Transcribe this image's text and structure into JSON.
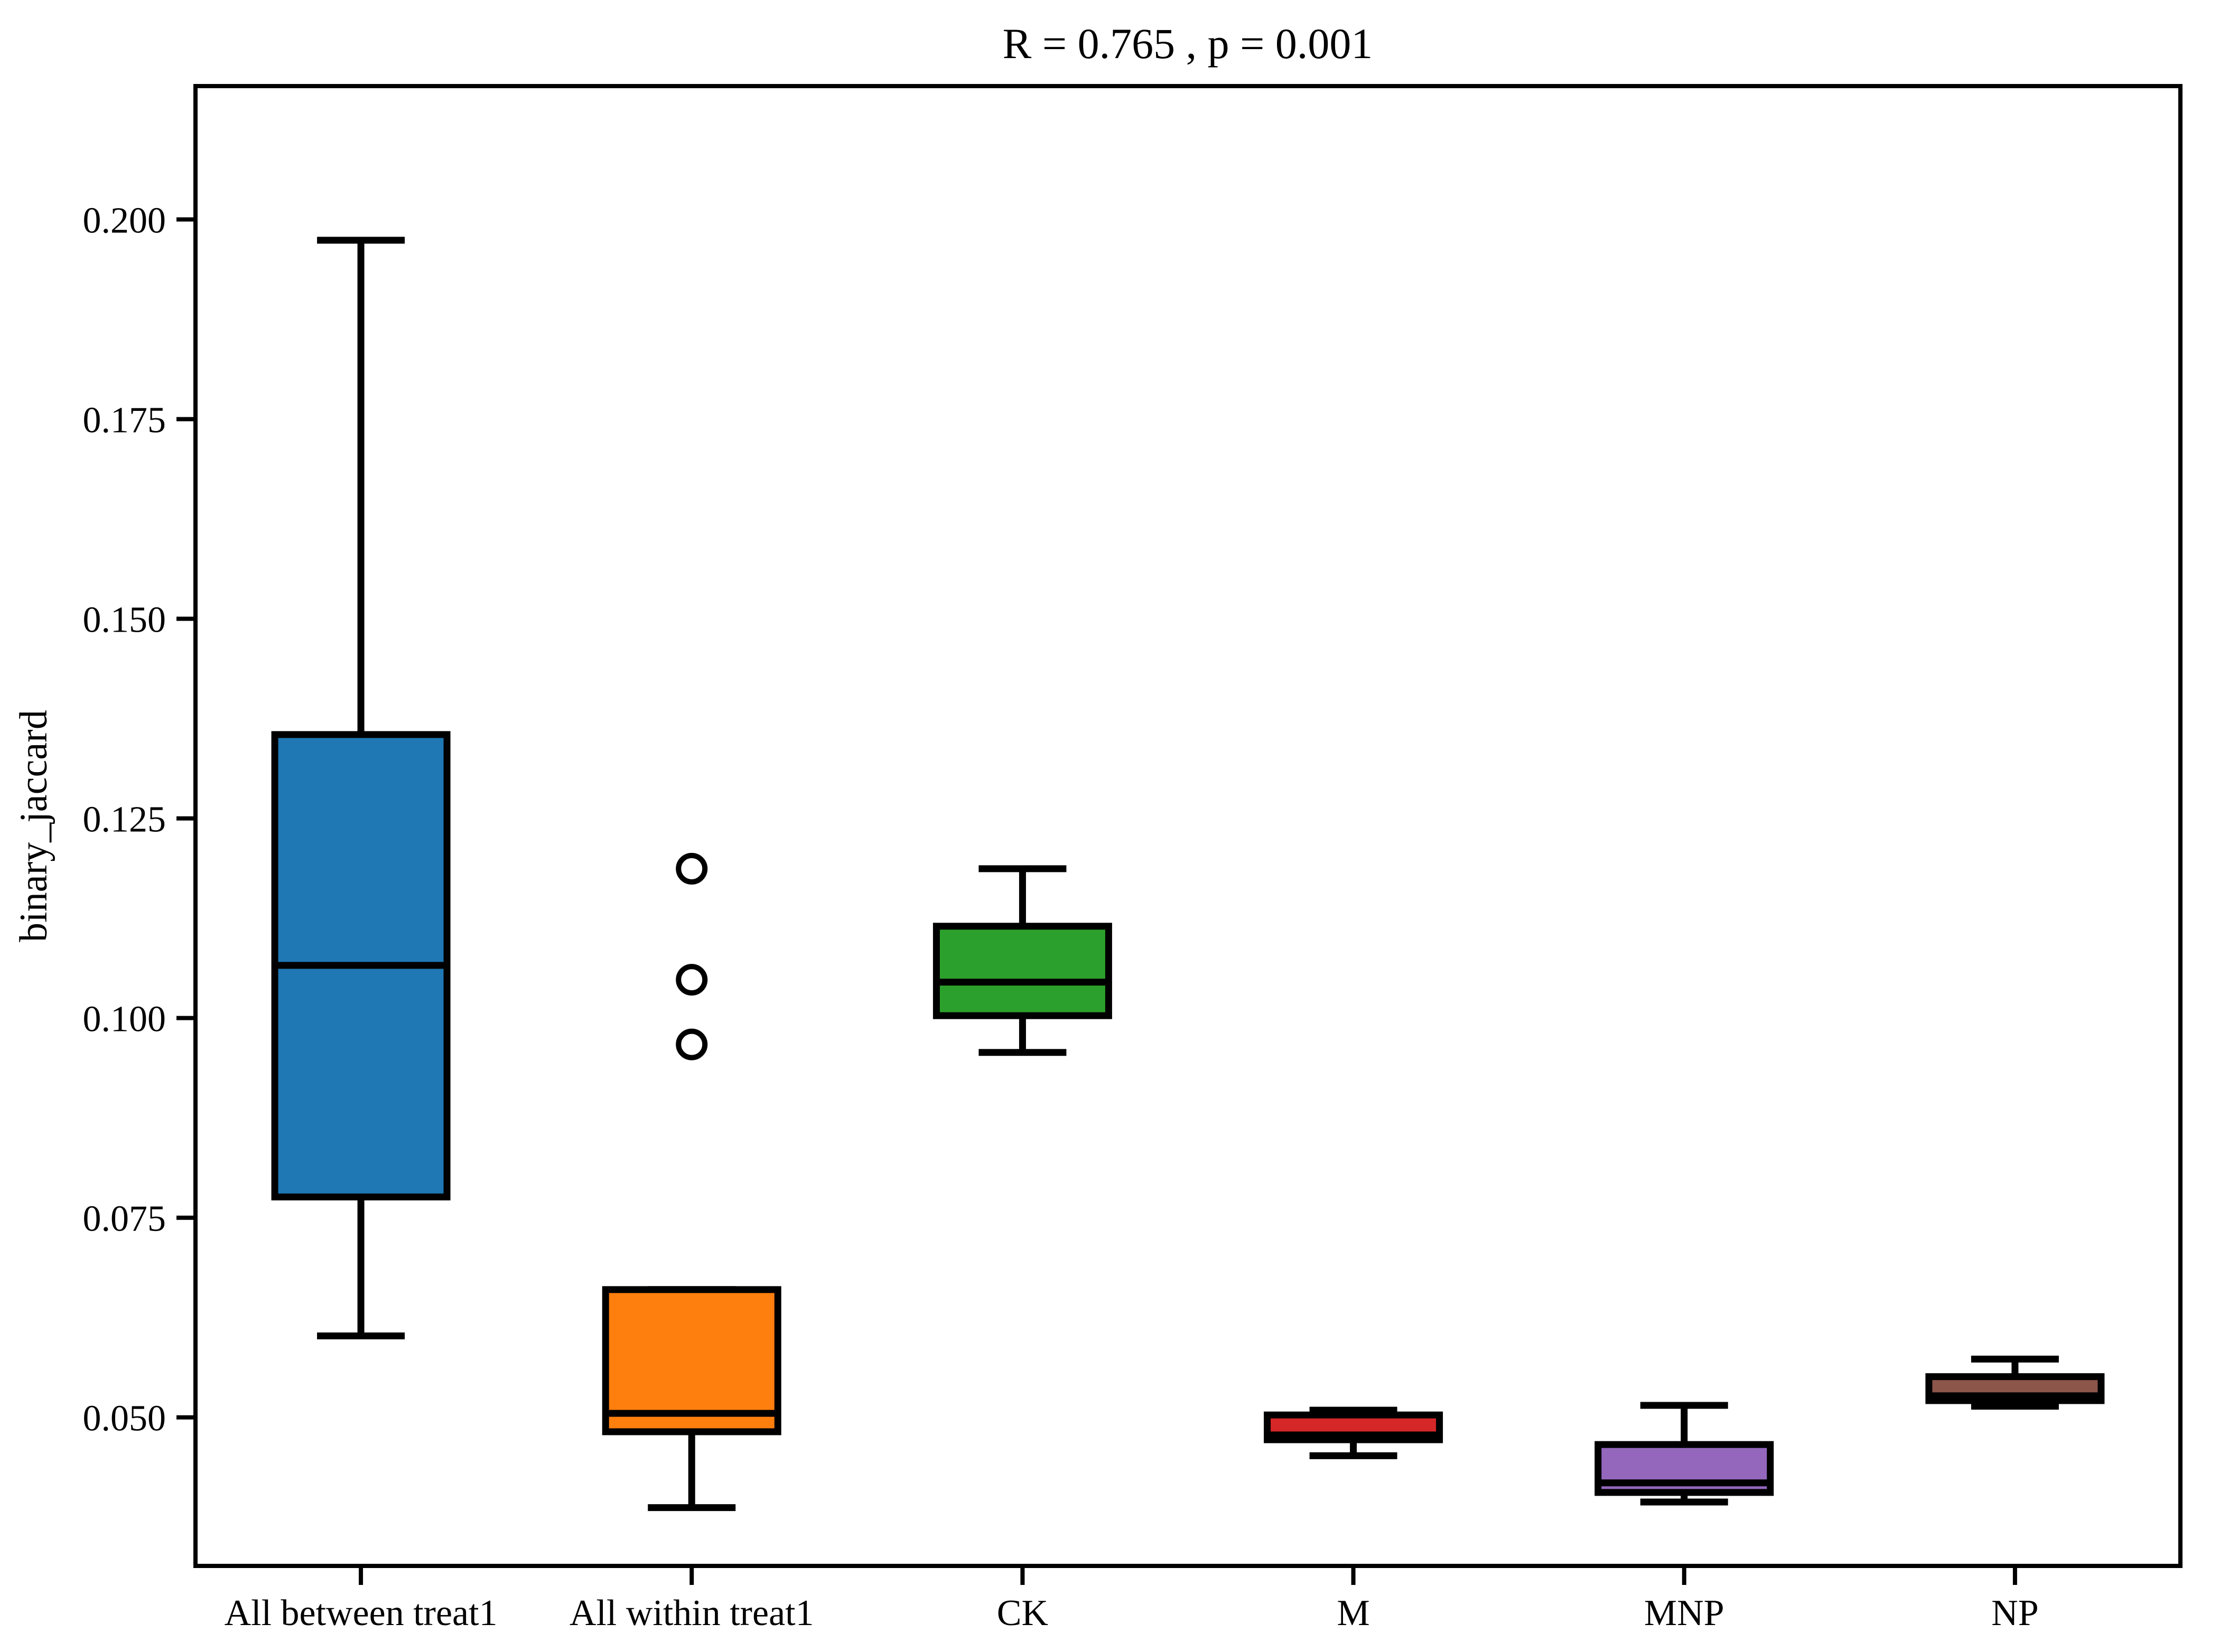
{
  "title": "R = 0.765 , p = 0.001",
  "chart_data": {
    "type": "boxplot",
    "title": "R = 0.765 , p = 0.001",
    "xlabel": "",
    "ylabel": "binary_jaccard",
    "ylim": [
      0.0314,
      0.2167
    ],
    "yticks": [
      0.05,
      0.075,
      0.1,
      0.125,
      0.15,
      0.175,
      0.2
    ],
    "ytick_labels": [
      "0.050",
      "0.075",
      "0.100",
      "0.125",
      "0.150",
      "0.175",
      "0.200"
    ],
    "grid": false,
    "legend": null,
    "categories": [
      "All between treat1",
      "All within treat1",
      "CK",
      "M",
      "MNP",
      "NP"
    ],
    "series": [
      {
        "name": "All between treat1",
        "color": "#1f77b4",
        "whisker_low": 0.0602,
        "q1": 0.0776,
        "median": 0.1066,
        "q3": 0.1355,
        "whisker_high": 0.1974,
        "outliers": []
      },
      {
        "name": "All within treat1",
        "color": "#ff7f0e",
        "whisker_low": 0.0387,
        "q1": 0.0482,
        "median": 0.0505,
        "q3": 0.066,
        "whisker_high": 0.066,
        "outliers": [
          0.1187,
          0.1048,
          0.0967
        ]
      },
      {
        "name": "CK",
        "color": "#2ca02c",
        "whisker_low": 0.0957,
        "q1": 0.1003,
        "median": 0.1045,
        "q3": 0.1115,
        "whisker_high": 0.1187,
        "outliers": []
      },
      {
        "name": "M",
        "color": "#d62728",
        "whisker_low": 0.0452,
        "q1": 0.0472,
        "median": 0.0478,
        "q3": 0.0503,
        "whisker_high": 0.0509,
        "outliers": []
      },
      {
        "name": "MNP",
        "color": "#9467bd",
        "whisker_low": 0.0394,
        "q1": 0.0406,
        "median": 0.0418,
        "q3": 0.0466,
        "whisker_high": 0.0515,
        "outliers": []
      },
      {
        "name": "NP",
        "color": "#8c564b",
        "whisker_low": 0.0514,
        "q1": 0.0521,
        "median": 0.0527,
        "q3": 0.0551,
        "whisker_high": 0.0573,
        "outliers": []
      }
    ]
  },
  "colors": {
    "axis": "#000000",
    "background": "#ffffff",
    "box_edge": "#000000"
  }
}
